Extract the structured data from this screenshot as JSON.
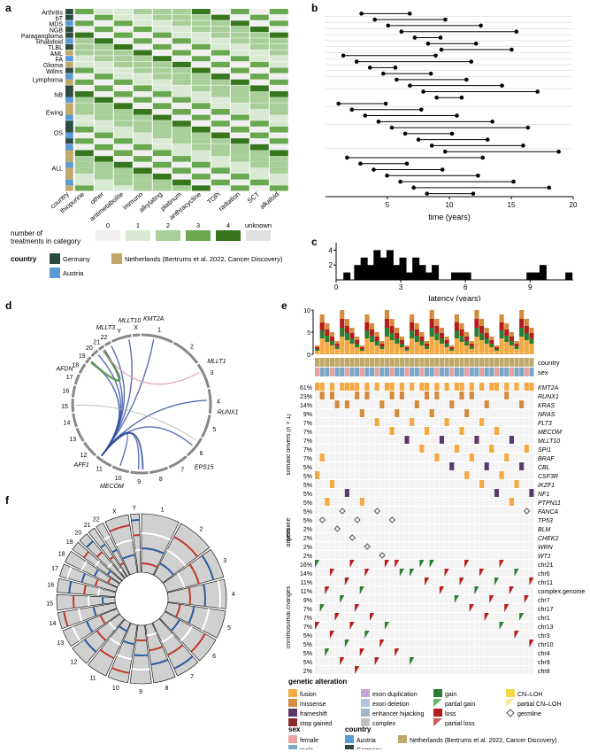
{
  "panels": {
    "a": "a",
    "b": "b",
    "c": "c",
    "d": "d",
    "e": "e",
    "f": "f"
  },
  "colors": {
    "heatmap": [
      "#f0f0f0",
      "#d9ead3",
      "#a8cf9a",
      "#6aa84f",
      "#38761d"
    ],
    "unknown": "#e0e0e0",
    "country_germany": "#2c4a3e",
    "country_netherlands": "#bfa96a",
    "country_austria": "#5b9bd5",
    "sex_female": "#e8a0a0",
    "sex_male": "#7ba7c7",
    "fusion": "#f4a942",
    "missense": "#d38c3e",
    "frameshift": "#5b3a6b",
    "stop_gained": "#8b2a2a",
    "exon_duplication": "#c5a7d6",
    "exon_deletion": "#b0c4de",
    "enhancer_hijacking": "#a0b8c8",
    "complex": "#c0c0c0",
    "gain": "#2e7d32",
    "partial_gain": "#66bb6a",
    "loss": "#b71c1c",
    "partial_loss": "#d15858",
    "cn_loh": "#f4d742",
    "partial_cn_loh": "#f9e79f",
    "germline_diamond": "#888888",
    "circos_blue": "#2e4a9e",
    "circos_green": "#4a8a3a",
    "circos_pink": "#d88aaa",
    "circos_gray": "#b0b0b0",
    "circos_track_gain": "#c0392b",
    "circos_track_loss": "#2c5aa0",
    "circos_bg": "#d0d0d0"
  },
  "heatmap": {
    "rows": [
      "Arthritis",
      "bT",
      "MDS",
      "NGB",
      "Paraganglioma",
      "Rhabdoid",
      "TLBL",
      "AML",
      "FA",
      "Glioma",
      "Wilms",
      "Lymphoma",
      "NB",
      "Ewing",
      "OS",
      "ALL"
    ],
    "row_counts": [
      1,
      1,
      1,
      1,
      1,
      1,
      1,
      1,
      1,
      1,
      1,
      2,
      3,
      3,
      4,
      8
    ],
    "cols": [
      "country",
      "thiopurine",
      "other",
      "antimetabolite",
      "immuno",
      "alkylating",
      "platinum",
      "anthracycline",
      "TOPi",
      "radiation",
      "SCT",
      "alkaloid"
    ],
    "legend_title": "number of\ntreatments in category",
    "legend_levels": [
      "0",
      "1",
      "2",
      "3",
      "4",
      "unknown"
    ],
    "country_labels": {
      "germany": "Germany",
      "netherlands": "Netherlands (Bertrums et al. 2022, Cancer Discovery)",
      "austria": "Austria"
    },
    "country_title": "country"
  },
  "panel_b": {
    "xlabel": "time (years)",
    "xlim": [
      0,
      20
    ],
    "xticks": [
      5,
      10,
      15,
      20
    ]
  },
  "panel_c": {
    "xlabel": "latency (years)",
    "xlim": [
      0,
      11
    ],
    "xticks": [
      0,
      3,
      6,
      9
    ],
    "ylim": [
      0,
      5
    ],
    "yticks": [
      2,
      4
    ]
  },
  "panel_d": {
    "gene_labels": [
      "MLLT1",
      "RUNX1",
      "EPS15",
      "MECOM",
      "AFF1",
      "AFDN",
      "MLLT3",
      "MLLT10",
      "KMT2A"
    ],
    "chrom_labels": [
      "X",
      "Y",
      "22",
      "21",
      "20",
      "19",
      "18",
      "17",
      "16",
      "15",
      "14",
      "13",
      "12",
      "11",
      "10",
      "9",
      "8",
      "7",
      "6",
      "5",
      "4",
      "3",
      "2",
      "1"
    ]
  },
  "panel_e": {
    "bar_ylim": [
      0,
      10
    ],
    "bar_yticks": [
      0,
      5,
      10
    ],
    "header_rows": [
      "country",
      "sex"
    ],
    "group1_title": "somatic drivers (n > 1)",
    "group2_title": "germline\ndrivers",
    "group3_title": "chromosomal changes",
    "somatic": [
      {
        "pct": "61%",
        "gene": "KMT2A"
      },
      {
        "pct": "23%",
        "gene": "RUNX1"
      },
      {
        "pct": "14%",
        "gene": "KRAS"
      },
      {
        "pct": "9%",
        "gene": "NRAS"
      },
      {
        "pct": "7%",
        "gene": "FLT3"
      },
      {
        "pct": "7%",
        "gene": "MECOM"
      },
      {
        "pct": "7%",
        "gene": "MLLT10"
      },
      {
        "pct": "7%",
        "gene": "SPI1"
      },
      {
        "pct": "7%",
        "gene": "BRAF"
      },
      {
        "pct": "5%",
        "gene": "CBL"
      },
      {
        "pct": "5%",
        "gene": "CSF3R"
      },
      {
        "pct": "5%",
        "gene": "IKZF1"
      },
      {
        "pct": "5%",
        "gene": "NF1"
      },
      {
        "pct": "5%",
        "gene": "PTPN11"
      }
    ],
    "germline": [
      {
        "pct": "5%",
        "gene": "FANCA"
      },
      {
        "pct": "5%",
        "gene": "TP53"
      },
      {
        "pct": "2%",
        "gene": "BLM"
      },
      {
        "pct": "2%",
        "gene": "CHEK2"
      },
      {
        "pct": "2%",
        "gene": "WRN"
      },
      {
        "pct": "2%",
        "gene": "WT1"
      }
    ],
    "chrom": [
      {
        "pct": "16%",
        "gene": "chr21"
      },
      {
        "pct": "14%",
        "gene": "chr6"
      },
      {
        "pct": "11%",
        "gene": "chr11"
      },
      {
        "pct": "11%",
        "gene": "complex.genome"
      },
      {
        "pct": "9%",
        "gene": "chr7"
      },
      {
        "pct": "7%",
        "gene": "chr17"
      },
      {
        "pct": "7%",
        "gene": "chr1"
      },
      {
        "pct": "7%",
        "gene": "chr13"
      },
      {
        "pct": "5%",
        "gene": "chr3"
      },
      {
        "pct": "5%",
        "gene": "chr10"
      },
      {
        "pct": "5%",
        "gene": "chr4"
      },
      {
        "pct": "5%",
        "gene": "chr9"
      },
      {
        "pct": "2%",
        "gene": "chr8"
      }
    ],
    "legend": {
      "title_alt": "genetic alteration",
      "items_alt": [
        [
          "fusion",
          "#f4a942"
        ],
        [
          "missense",
          "#d38c3e"
        ],
        [
          "frameshift",
          "#5b3a6b"
        ],
        [
          "stop gained",
          "#8b2a2a"
        ],
        [
          "exon duplication",
          "#c5a7d6"
        ],
        [
          "exon deletion",
          "#b0c4de"
        ],
        [
          "enhancer hijacking",
          "#a0b8c8"
        ],
        [
          "complex",
          "#c0c0c0"
        ],
        [
          "gain",
          "#2e7d32"
        ],
        [
          "partial gain",
          "#66bb6a"
        ],
        [
          "loss",
          "#b71c1c"
        ],
        [
          "partial loss",
          "#d15858"
        ],
        [
          "CN–LOH",
          "#f4d742"
        ],
        [
          "partial CN–LOH",
          "#f9e79f"
        ],
        [
          "germline",
          "diamond"
        ]
      ],
      "title_sex": "sex",
      "items_sex": [
        [
          "female",
          "#e8a0a0"
        ],
        [
          "male",
          "#7ba7c7"
        ]
      ],
      "title_country": "country",
      "items_country": [
        [
          "Austria",
          "#5b9bd5"
        ],
        [
          "Germany",
          "#2c4a3e"
        ],
        [
          "Netherlands (Bertrums et al. 2022, Cancer Discovery)",
          "#bfa96a"
        ]
      ]
    }
  },
  "panel_f": {
    "chrom_labels": [
      "1",
      "2",
      "3",
      "4",
      "5",
      "6",
      "7",
      "8",
      "9",
      "10",
      "11",
      "12",
      "13",
      "14",
      "15",
      "16",
      "17",
      "18",
      "19",
      "20",
      "21",
      "22",
      "X",
      "Y"
    ]
  }
}
